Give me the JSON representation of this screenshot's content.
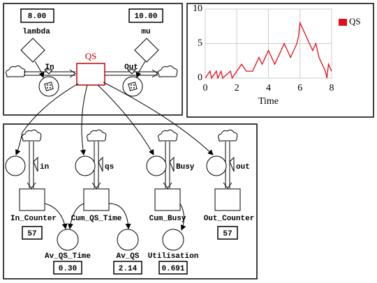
{
  "top_model": {
    "lambda": {
      "label": "lambda",
      "value": "8.00"
    },
    "mu": {
      "label": "mu",
      "value": "10.00"
    },
    "stock": "QS",
    "inflow": "In",
    "outflow": "Out"
  },
  "chart_data": {
    "type": "line",
    "x_label": "Time",
    "x": [
      0,
      0.3,
      0.4,
      0.7,
      0.8,
      1.0,
      1.1,
      1.6,
      1.7,
      2.0,
      2.3,
      2.6,
      3.0,
      3.2,
      3.4,
      3.6,
      3.8,
      4.0,
      4.2,
      4.4,
      4.6,
      4.8,
      5.0,
      5.2,
      5.4,
      5.6,
      5.8,
      5.9,
      6.0,
      6.2,
      6.4,
      6.6,
      6.8,
      7.0,
      7.2,
      7.4,
      7.6,
      7.7,
      7.8,
      8.0
    ],
    "series": [
      {
        "name": "QS",
        "color": "#e0101a",
        "values": [
          0,
          1,
          0,
          1,
          0,
          1,
          0,
          1,
          0,
          1,
          2,
          1,
          1,
          2,
          3,
          2,
          3,
          4,
          3,
          2,
          3,
          4,
          5,
          4,
          3,
          4,
          5,
          6,
          8,
          7,
          6,
          5,
          4,
          5,
          3,
          2,
          1,
          0,
          2,
          1
        ]
      }
    ],
    "xlim": [
      0,
      8
    ],
    "xticks": [
      0,
      2,
      4,
      6,
      8
    ],
    "ylim": [
      0,
      10
    ],
    "yticks": [
      0,
      5,
      10
    ],
    "grid": true,
    "legend": "right"
  },
  "bottom_model": {
    "flows": [
      "in",
      "qs",
      "Busy",
      "out"
    ],
    "stocks": [
      {
        "label": "In_Counter",
        "value": "57"
      },
      {
        "label": "Cum_QS_Time"
      },
      {
        "label": "Cum_Busy"
      },
      {
        "label": "Out_Counter",
        "value": "57"
      }
    ],
    "converters": [
      {
        "label": "Av_QS_Time",
        "value": "0.30"
      },
      {
        "label": "Av_QS",
        "value": "2.14"
      },
      {
        "label": "Utilisation",
        "value": "0.691"
      }
    ]
  }
}
